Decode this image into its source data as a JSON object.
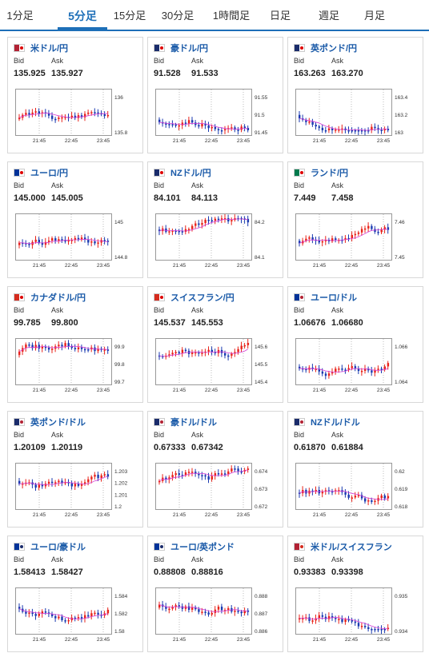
{
  "tabs": [
    {
      "label": "1分足",
      "active": false
    },
    {
      "label": "5分足",
      "active": true
    },
    {
      "label": "15分足",
      "active": false
    },
    {
      "label": "30分足",
      "active": false
    },
    {
      "label": "1時間足",
      "active": false
    },
    {
      "label": "日足",
      "active": false
    },
    {
      "label": "週足",
      "active": false
    },
    {
      "label": "月足",
      "active": false
    }
  ],
  "labels": {
    "bid": "Bid",
    "ask": "Ask"
  },
  "colors": {
    "up": "#e8231a",
    "down": "#1a3ab0",
    "ma": "#d63cd6",
    "grid": "#bbbbbb",
    "title": "#1a5aa8",
    "accent": "#1d6fb8"
  },
  "x_ticks": [
    "21:45",
    "22:45",
    "23:45"
  ],
  "pairs": [
    {
      "name": "米ドル/円",
      "flag": "flag-us-jp-icon",
      "bid": "135.925",
      "ask": "135.927",
      "y_ticks": [
        "136",
        "135.8"
      ],
      "seed": 11
    },
    {
      "name": "豪ドル/円",
      "flag": "flag-au-jp-icon",
      "bid": "91.528",
      "ask": "91.533",
      "y_ticks": [
        "91.55",
        "91.5",
        "91.45"
      ],
      "seed": 23
    },
    {
      "name": "英ポンド/円",
      "flag": "flag-gb-jp-icon",
      "bid": "163.263",
      "ask": "163.270",
      "y_ticks": [
        "163.4",
        "163.2",
        "163"
      ],
      "seed": 37
    },
    {
      "name": "ユーロ/円",
      "flag": "flag-eu-jp-icon",
      "bid": "145.000",
      "ask": "145.005",
      "y_ticks": [
        "145",
        "144.8"
      ],
      "seed": 41
    },
    {
      "name": "NZドル/円",
      "flag": "flag-nz-jp-icon",
      "bid": "84.101",
      "ask": "84.113",
      "y_ticks": [
        "84.2",
        "84.1"
      ],
      "seed": 53
    },
    {
      "name": "ランド/円",
      "flag": "flag-za-jp-icon",
      "bid": "7.449",
      "ask": "7.458",
      "y_ticks": [
        "7.46",
        "7.45"
      ],
      "seed": 67
    },
    {
      "name": "カナダドル/円",
      "flag": "flag-ca-jp-icon",
      "bid": "99.785",
      "ask": "99.800",
      "y_ticks": [
        "99.9",
        "99.8",
        "99.7"
      ],
      "seed": 71
    },
    {
      "name": "スイスフラン/円",
      "flag": "flag-ch-jp-icon",
      "bid": "145.537",
      "ask": "145.553",
      "y_ticks": [
        "145.6",
        "145.5",
        "145.4"
      ],
      "seed": 83
    },
    {
      "name": "ユーロ/ドル",
      "flag": "flag-eu-us-icon",
      "bid": "1.06676",
      "ask": "1.06680",
      "y_ticks": [
        "1.066",
        "1.064"
      ],
      "seed": 97
    },
    {
      "name": "英ポンド/ドル",
      "flag": "flag-gb-us-icon",
      "bid": "1.20109",
      "ask": "1.20119",
      "y_ticks": [
        "1.203",
        "1.202",
        "1.201",
        "1.2"
      ],
      "seed": 101
    },
    {
      "name": "豪ドル/ドル",
      "flag": "flag-au-us-icon",
      "bid": "0.67333",
      "ask": "0.67342",
      "y_ticks": [
        "0.674",
        "0.673",
        "0.672"
      ],
      "seed": 113
    },
    {
      "name": "NZドル/ドル",
      "flag": "flag-nz-us-icon",
      "bid": "0.61870",
      "ask": "0.61884",
      "y_ticks": [
        "0.62",
        "0.619",
        "0.618"
      ],
      "seed": 127
    },
    {
      "name": "ユーロ/豪ドル",
      "flag": "flag-eu-au-icon",
      "bid": "1.58413",
      "ask": "1.58427",
      "y_ticks": [
        "1.584",
        "1.582",
        "1.58"
      ],
      "seed": 131
    },
    {
      "name": "ユーロ/英ポンド",
      "flag": "flag-eu-gb-icon",
      "bid": "0.88808",
      "ask": "0.88816",
      "y_ticks": [
        "0.888",
        "0.887",
        "0.886"
      ],
      "seed": 149
    },
    {
      "name": "米ドル/スイスフラン",
      "flag": "flag-us-ch-icon",
      "bid": "0.93383",
      "ask": "0.93398",
      "y_ticks": [
        "0.935",
        "0.934"
      ],
      "seed": 157
    }
  ]
}
